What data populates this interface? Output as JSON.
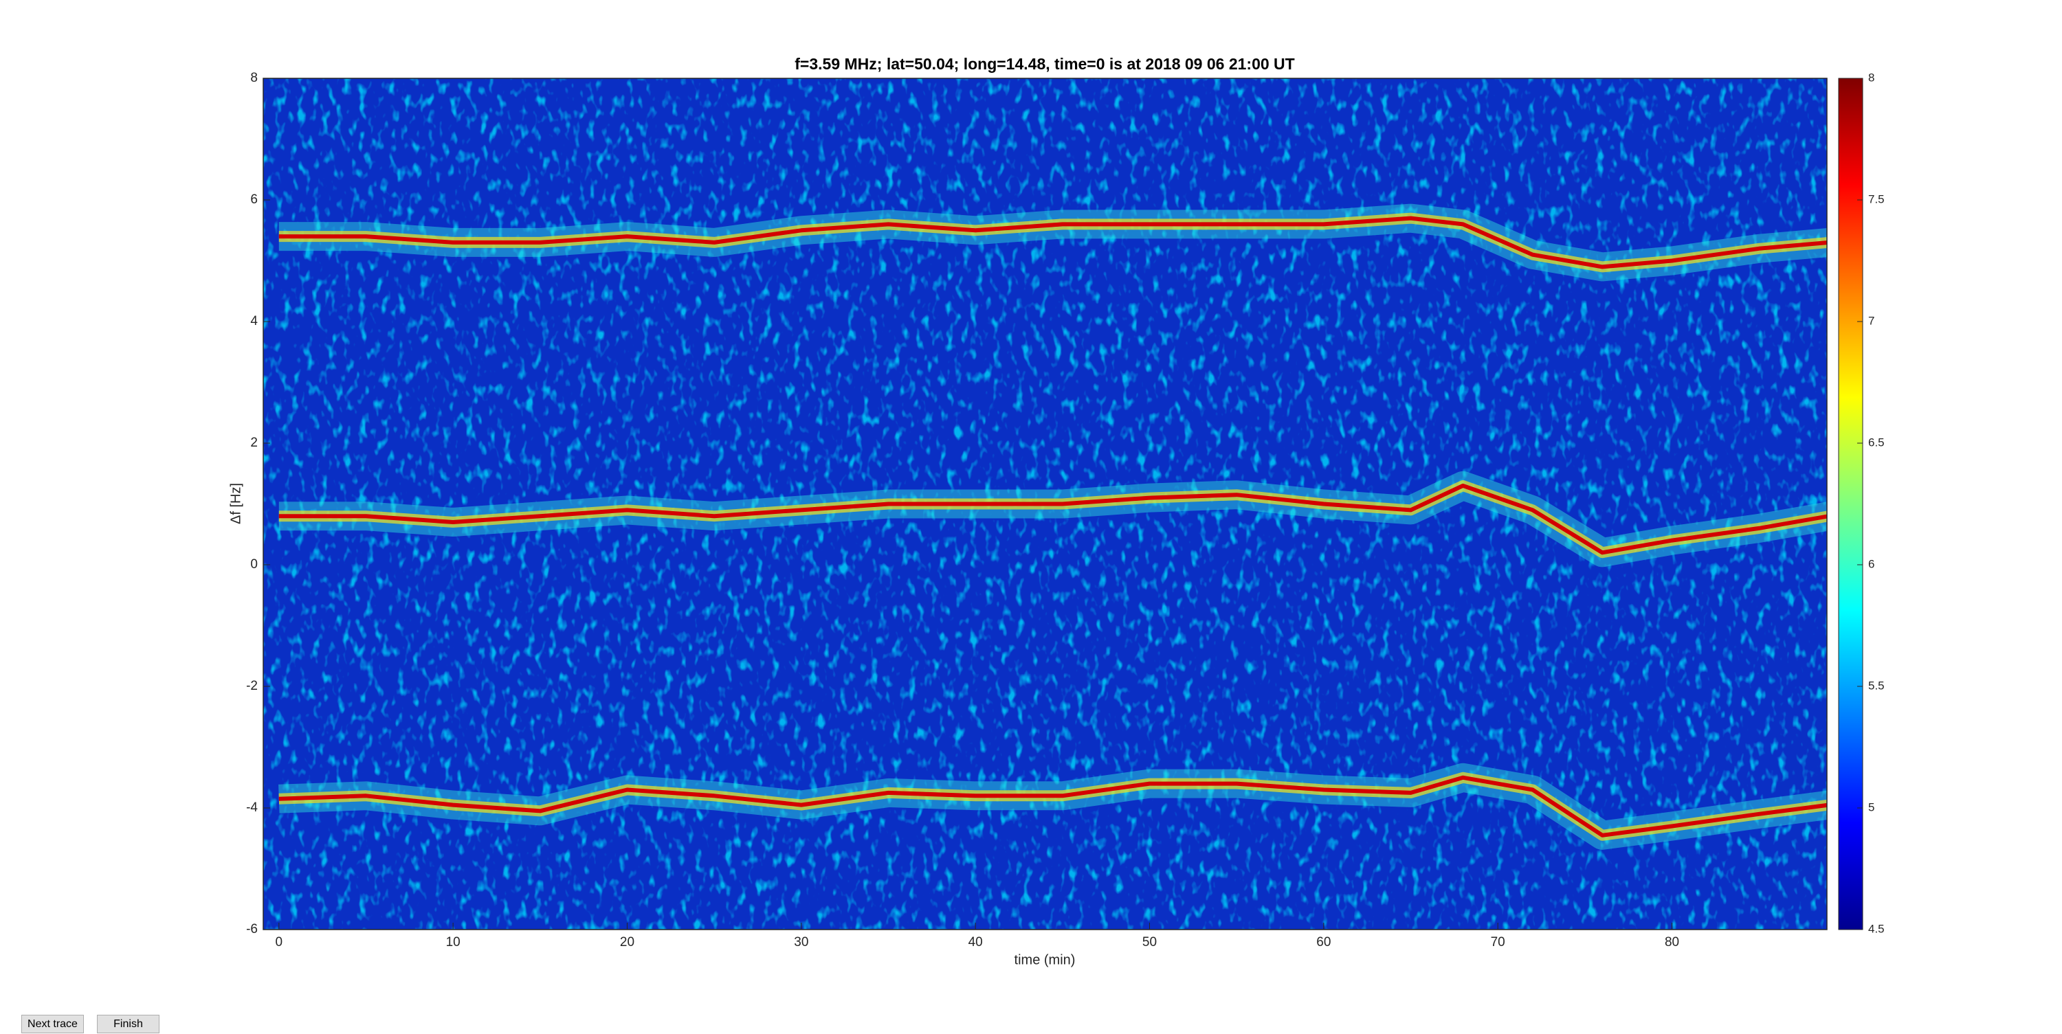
{
  "chart_data": {
    "type": "spectrogram",
    "title": "f=3.59 MHz;  lat=50.04; long=14.48, time=0 is at 2018 09 06 21:00 UT",
    "xlabel": "time (min)",
    "ylabel": "Δf [Hz]",
    "x": [
      0,
      5,
      10,
      15,
      20,
      25,
      30,
      35,
      40,
      45,
      50,
      55,
      60,
      65,
      68,
      72,
      76,
      80,
      85,
      89
    ],
    "series": [
      {
        "color": "#d40000",
        "values": [
          5.4,
          5.4,
          5.3,
          5.3,
          5.4,
          5.3,
          5.5,
          5.6,
          5.5,
          5.6,
          5.6,
          5.6,
          5.6,
          5.7,
          5.6,
          5.1,
          4.9,
          5.0,
          5.2,
          5.3
        ]
      },
      {
        "color": "#d40000",
        "values": [
          0.8,
          0.8,
          0.7,
          0.8,
          0.9,
          0.8,
          0.9,
          1.0,
          1.0,
          1.0,
          1.1,
          1.15,
          1.0,
          0.9,
          1.3,
          0.9,
          0.2,
          0.4,
          0.6,
          0.8
        ]
      },
      {
        "color": "#d40000",
        "values": [
          -3.85,
          -3.8,
          -3.95,
          -4.05,
          -3.7,
          -3.8,
          -3.95,
          -3.75,
          -3.8,
          -3.8,
          -3.6,
          -3.6,
          -3.7,
          -3.75,
          -3.5,
          -3.7,
          -4.45,
          -4.3,
          -4.1,
          -3.95
        ]
      }
    ],
    "xlim": [
      -0.9,
      88.9
    ],
    "xticks": [
      0,
      10,
      20,
      30,
      40,
      50,
      60,
      70,
      80
    ],
    "ylim": [
      -6,
      8
    ],
    "yticks": [
      -6,
      -4,
      -2,
      0,
      2,
      4,
      6,
      8
    ],
    "clim": [
      4.5,
      8
    ],
    "cticks": [
      4.5,
      5,
      5.5,
      6,
      6.5,
      7,
      7.5,
      8
    ]
  },
  "buttons": [
    "Next trace",
    "Finish"
  ]
}
